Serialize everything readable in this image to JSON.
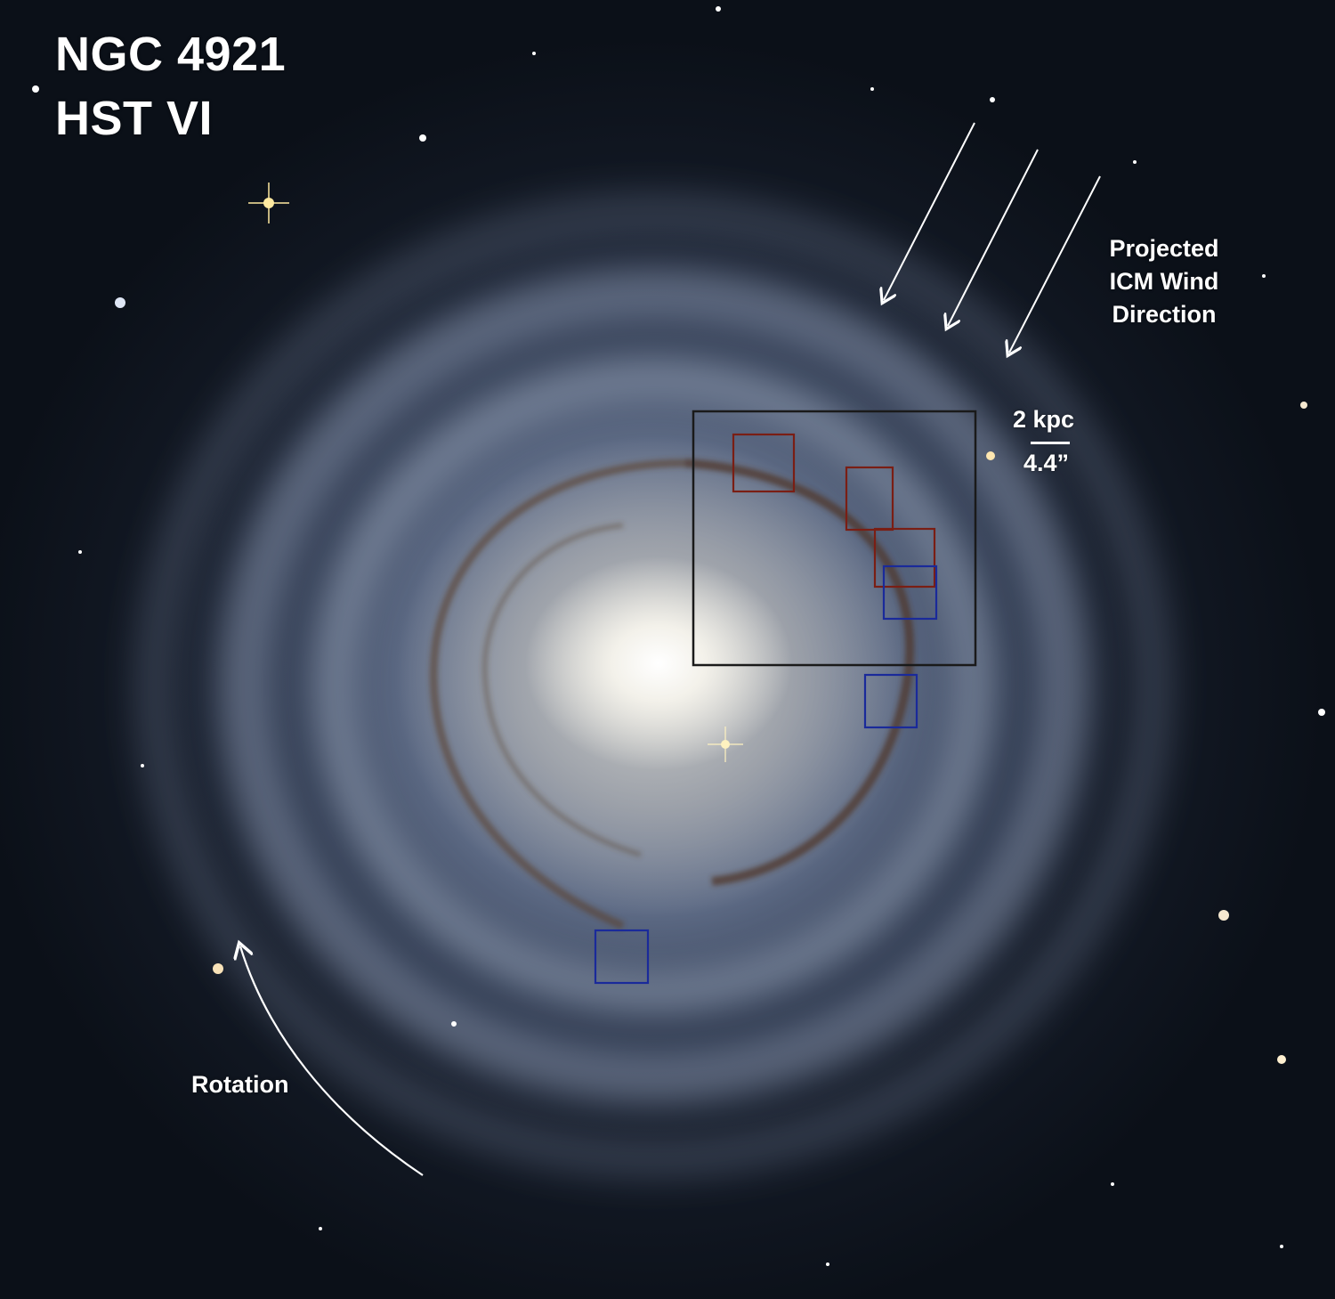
{
  "title": {
    "line1": "NGC 4921",
    "line2": "HST VI"
  },
  "wind_label": {
    "line1": "Projected",
    "line2": "ICM Wind",
    "line3": "Direction"
  },
  "scale": {
    "distance": "2 kpc",
    "angle": "4.4”"
  },
  "rotation_label": "Rotation",
  "colors": {
    "text": "#ffffff",
    "main_box": "#1a1a1a",
    "red_box": "#7a1e14",
    "blue_box": "#1a2a9a",
    "arrow": "#ffffff"
  }
}
